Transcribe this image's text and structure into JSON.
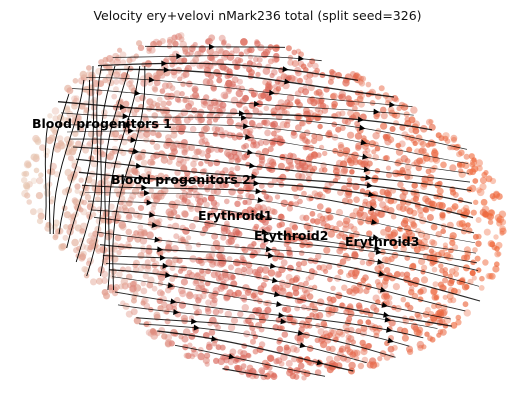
{
  "figure": {
    "title": "Velocity ery+velovi nMark236 total (split seed=326)"
  },
  "clusters": [
    {
      "label": "Blood progenitors 1"
    },
    {
      "label": "Blood progenitors 2"
    },
    {
      "label": "Erythroid1"
    },
    {
      "label": "Erythroid2"
    },
    {
      "label": "Erythroid3"
    }
  ],
  "colors": {
    "progenitor": "#e8c8b4",
    "mid": "#d9695f",
    "erythroid": "#f06a3c",
    "stream": "#000000"
  }
}
